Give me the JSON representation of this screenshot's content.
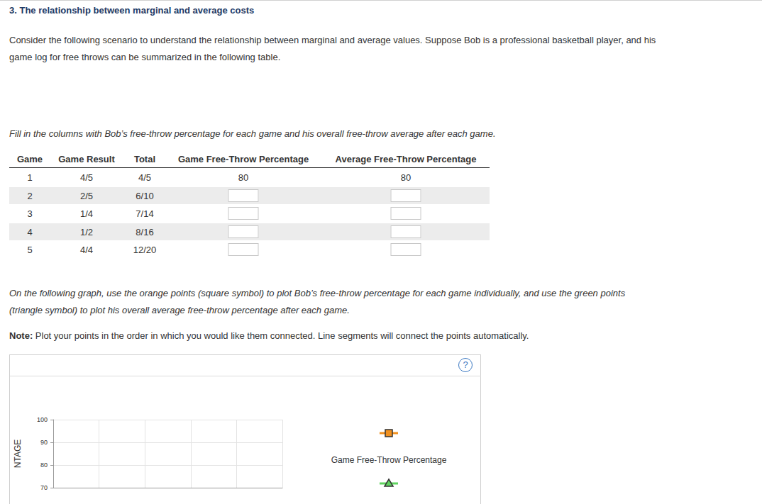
{
  "title": "3. The relationship between marginal and average costs",
  "intro": "Consider the following scenario to understand the relationship between marginal and average values. Suppose Bob is a professional basketball player, and his game log for free throws can be summarized in the following table.",
  "table_instruction": "Fill in the columns with Bob’s free-throw percentage for each game and his overall free-throw average after each game.",
  "table": {
    "header": [
      "Game",
      "Game Result",
      "Total",
      "Game Free-Throw Percentage",
      "Average Free-Throw Percentage"
    ],
    "rows": [
      [
        1,
        "4/5",
        "4/5",
        80,
        80
      ],
      [
        2,
        "2/5",
        "6/10",
        null,
        null
      ],
      [
        3,
        "1/4",
        "7/14",
        null,
        null
      ],
      [
        4,
        "1/2",
        "8/16",
        null,
        null
      ],
      [
        5,
        "4/4",
        "12/20",
        null,
        null
      ]
    ]
  },
  "graph_instruction": "On the following graph, use the orange points (square symbol) to plot Bob’s free-throw percentage for each game individually, and use the green points (triangle symbol) to plot his overall average free-throw percentage after each game.",
  "note": {
    "label": "Note:",
    "text": "Plot your points in the order in which you would like them connected. Line segments will connect the points automatically."
  },
  "help_icon": "?",
  "chart_data": {
    "type": "line",
    "y_label": "NTAGE",
    "xlim": [
      0,
      5
    ],
    "xticks": [
      0,
      1,
      2,
      3,
      4,
      5
    ],
    "ylim": [
      70,
      100
    ],
    "yticks": [
      70,
      80,
      90,
      100
    ],
    "grid": true,
    "tick_labels": "y",
    "series": [
      {
        "name": "Game Free-Throw Percentage",
        "color": "#f0901e",
        "marker": "square",
        "values": []
      },
      {
        "color": "#5fd35f",
        "marker": "triangle",
        "values": []
      }
    ]
  }
}
